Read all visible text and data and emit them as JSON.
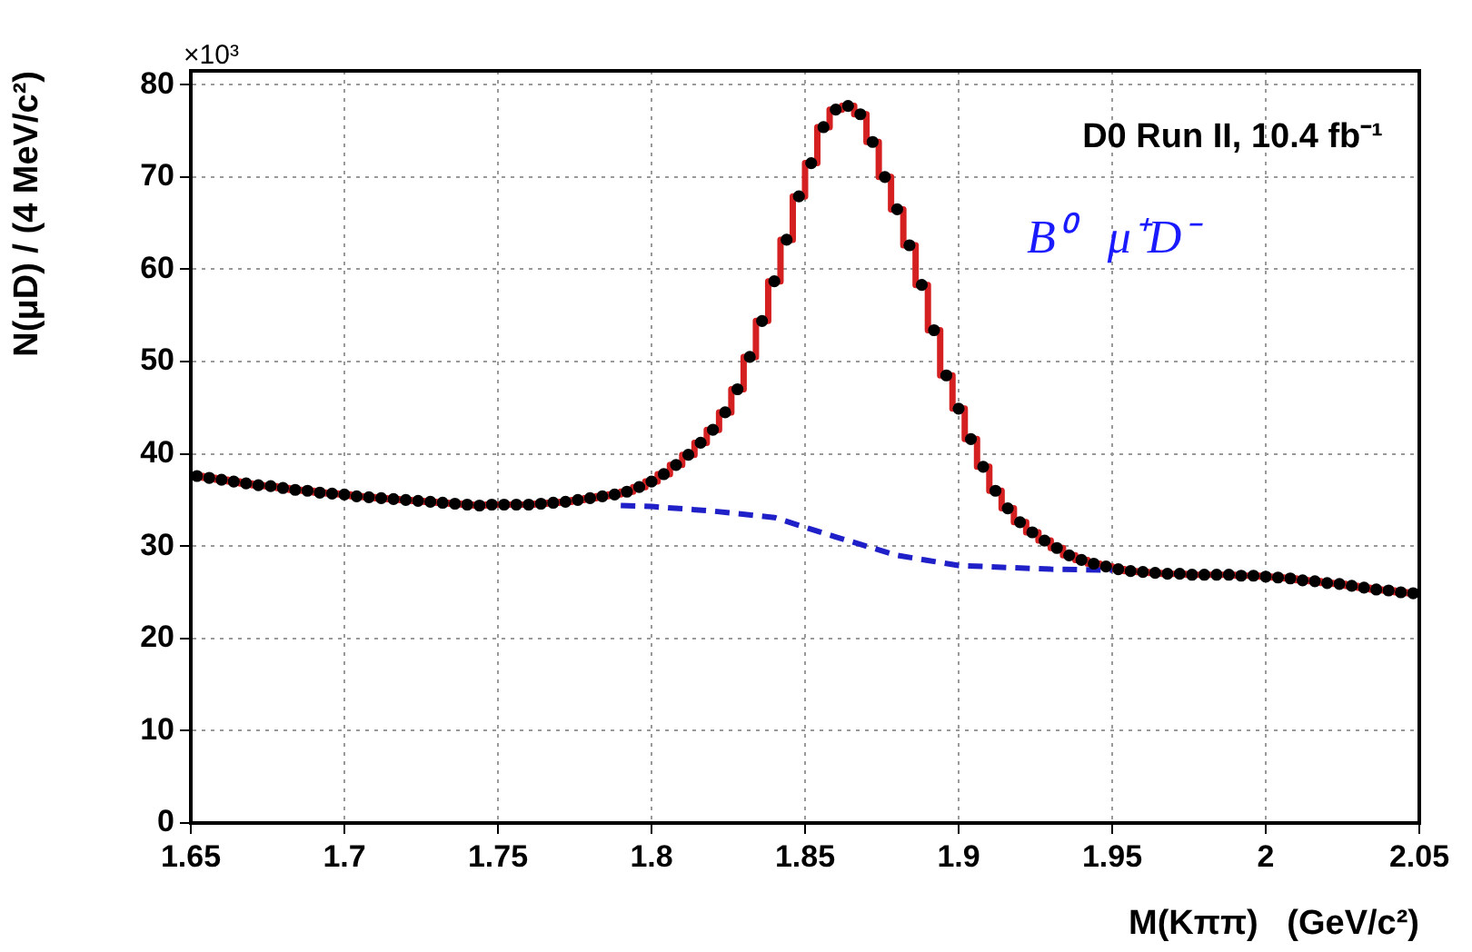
{
  "chart_data": {
    "type": "histogram",
    "xlabel": "M(Kππ)   (GeV/c²)",
    "ylabel": "N(μD) / (4 MeV/c²)",
    "annotations": [
      "×10³",
      "D0 Run II, 10.4 fb⁻¹",
      "B⁰   μ⁺D⁻"
    ],
    "bins": [
      1.65,
      1.654,
      1.658,
      1.662,
      1.666,
      1.67,
      1.674,
      1.678,
      1.682,
      1.686,
      1.69,
      1.694,
      1.698,
      1.702,
      1.706,
      1.71,
      1.714,
      1.718,
      1.722,
      1.726,
      1.73,
      1.734,
      1.738,
      1.742,
      1.746,
      1.75,
      1.754,
      1.758,
      1.762,
      1.766,
      1.77,
      1.774,
      1.778,
      1.782,
      1.786,
      1.79,
      1.794,
      1.798,
      1.802,
      1.806,
      1.81,
      1.814,
      1.818,
      1.822,
      1.826,
      1.83,
      1.834,
      1.838,
      1.842,
      1.846,
      1.85,
      1.854,
      1.858,
      1.862,
      1.866,
      1.87,
      1.874,
      1.878,
      1.882,
      1.886,
      1.89,
      1.894,
      1.898,
      1.902,
      1.906,
      1.91,
      1.914,
      1.918,
      1.922,
      1.926,
      1.93,
      1.934,
      1.938,
      1.942,
      1.946,
      1.95,
      1.954,
      1.958,
      1.962,
      1.966,
      1.97,
      1.974,
      1.978,
      1.982,
      1.986,
      1.99,
      1.994,
      1.998,
      2.002,
      2.006,
      2.01,
      2.014,
      2.018,
      2.022,
      2.026,
      2.03,
      2.034,
      2.038,
      2.042,
      2.046,
      2.05
    ],
    "series": [
      {
        "type": "histogram",
        "color": "#d42020",
        "values": [
          37.6,
          37.4,
          37.2,
          37.0,
          36.8,
          36.6,
          36.5,
          36.3,
          36.1,
          36.0,
          35.8,
          35.7,
          35.6,
          35.4,
          35.3,
          35.2,
          35.1,
          35.0,
          34.9,
          34.8,
          34.7,
          34.6,
          34.5,
          34.4,
          34.5,
          34.5,
          34.5,
          34.5,
          34.6,
          34.7,
          34.8,
          35.0,
          35.2,
          35.4,
          35.6,
          35.9,
          36.4,
          37.0,
          37.8,
          38.8,
          39.9,
          41.2,
          42.6,
          44.5,
          47.0,
          50.5,
          54.4,
          58.7,
          63.2,
          67.9,
          71.5,
          75.4,
          77.3,
          77.7,
          76.8,
          73.8,
          70.0,
          66.5,
          62.6,
          58.3,
          53.4,
          48.5,
          44.9,
          41.6,
          38.6,
          36.0,
          34.1,
          32.6,
          31.5,
          30.6,
          29.8,
          29.0,
          28.5,
          28.1,
          27.8,
          27.5,
          27.3,
          27.2,
          27.1,
          27.0,
          27.0,
          26.9,
          26.9,
          26.9,
          26.9,
          26.8,
          26.8,
          26.7,
          26.6,
          26.5,
          26.3,
          26.2,
          26.0,
          25.9,
          25.7,
          25.5,
          25.3,
          25.2,
          25.0,
          24.9
        ]
      },
      {
        "type": "scatter",
        "color": "#000000",
        "marker": "circle",
        "x": [
          1.652,
          1.656,
          1.66,
          1.664,
          1.668,
          1.672,
          1.676,
          1.68,
          1.684,
          1.688,
          1.692,
          1.696,
          1.7,
          1.704,
          1.708,
          1.712,
          1.716,
          1.72,
          1.724,
          1.728,
          1.732,
          1.736,
          1.74,
          1.744,
          1.748,
          1.752,
          1.756,
          1.76,
          1.764,
          1.768,
          1.772,
          1.776,
          1.78,
          1.784,
          1.788,
          1.792,
          1.796,
          1.8,
          1.804,
          1.808,
          1.812,
          1.816,
          1.82,
          1.824,
          1.828,
          1.832,
          1.836,
          1.84,
          1.844,
          1.848,
          1.852,
          1.856,
          1.86,
          1.864,
          1.868,
          1.872,
          1.876,
          1.88,
          1.884,
          1.888,
          1.892,
          1.896,
          1.9,
          1.904,
          1.908,
          1.912,
          1.916,
          1.92,
          1.924,
          1.928,
          1.932,
          1.936,
          1.94,
          1.944,
          1.948,
          1.952,
          1.956,
          1.96,
          1.964,
          1.968,
          1.972,
          1.976,
          1.98,
          1.984,
          1.988,
          1.992,
          1.996,
          2.0,
          2.004,
          2.008,
          2.012,
          2.016,
          2.02,
          2.024,
          2.028,
          2.032,
          2.036,
          2.04,
          2.044,
          2.048
        ],
        "values": [
          37.6,
          37.4,
          37.2,
          37.0,
          36.8,
          36.6,
          36.5,
          36.3,
          36.1,
          36.0,
          35.8,
          35.7,
          35.6,
          35.4,
          35.3,
          35.2,
          35.1,
          35.0,
          34.9,
          34.8,
          34.7,
          34.6,
          34.5,
          34.4,
          34.5,
          34.5,
          34.5,
          34.5,
          34.6,
          34.7,
          34.8,
          35.0,
          35.2,
          35.4,
          35.6,
          35.9,
          36.4,
          37.0,
          37.8,
          38.8,
          39.9,
          41.2,
          42.6,
          44.5,
          47.0,
          50.5,
          54.4,
          58.7,
          63.2,
          67.9,
          71.5,
          75.4,
          77.3,
          77.7,
          76.8,
          73.8,
          70.0,
          66.5,
          62.6,
          58.3,
          53.4,
          48.5,
          44.9,
          41.6,
          38.6,
          36.0,
          34.1,
          32.6,
          31.5,
          30.6,
          29.8,
          29.0,
          28.5,
          28.1,
          27.8,
          27.5,
          27.3,
          27.2,
          27.1,
          27.0,
          27.0,
          26.9,
          26.9,
          26.9,
          26.9,
          26.8,
          26.8,
          26.7,
          26.6,
          26.5,
          26.3,
          26.2,
          26.0,
          25.9,
          25.7,
          25.5,
          25.3,
          25.2,
          25.0,
          24.9
        ]
      },
      {
        "type": "line",
        "color": "#2020c8",
        "line_style": "dashed",
        "x": [
          1.79,
          1.8,
          1.82,
          1.84,
          1.86,
          1.88,
          1.9,
          1.93,
          1.95
        ],
        "values": [
          34.4,
          34.3,
          33.8,
          33.1,
          31.0,
          29.0,
          27.9,
          27.5,
          27.4
        ]
      }
    ],
    "xlim": [
      1.65,
      2.05
    ],
    "xticks": [
      1.65,
      1.7,
      1.75,
      1.8,
      1.85,
      1.9,
      1.95,
      2,
      2.05
    ],
    "ylim": [
      0,
      81.5
    ],
    "yticks": [
      0,
      10,
      20,
      30,
      40,
      50,
      60,
      70,
      80
    ],
    "grid": true
  }
}
